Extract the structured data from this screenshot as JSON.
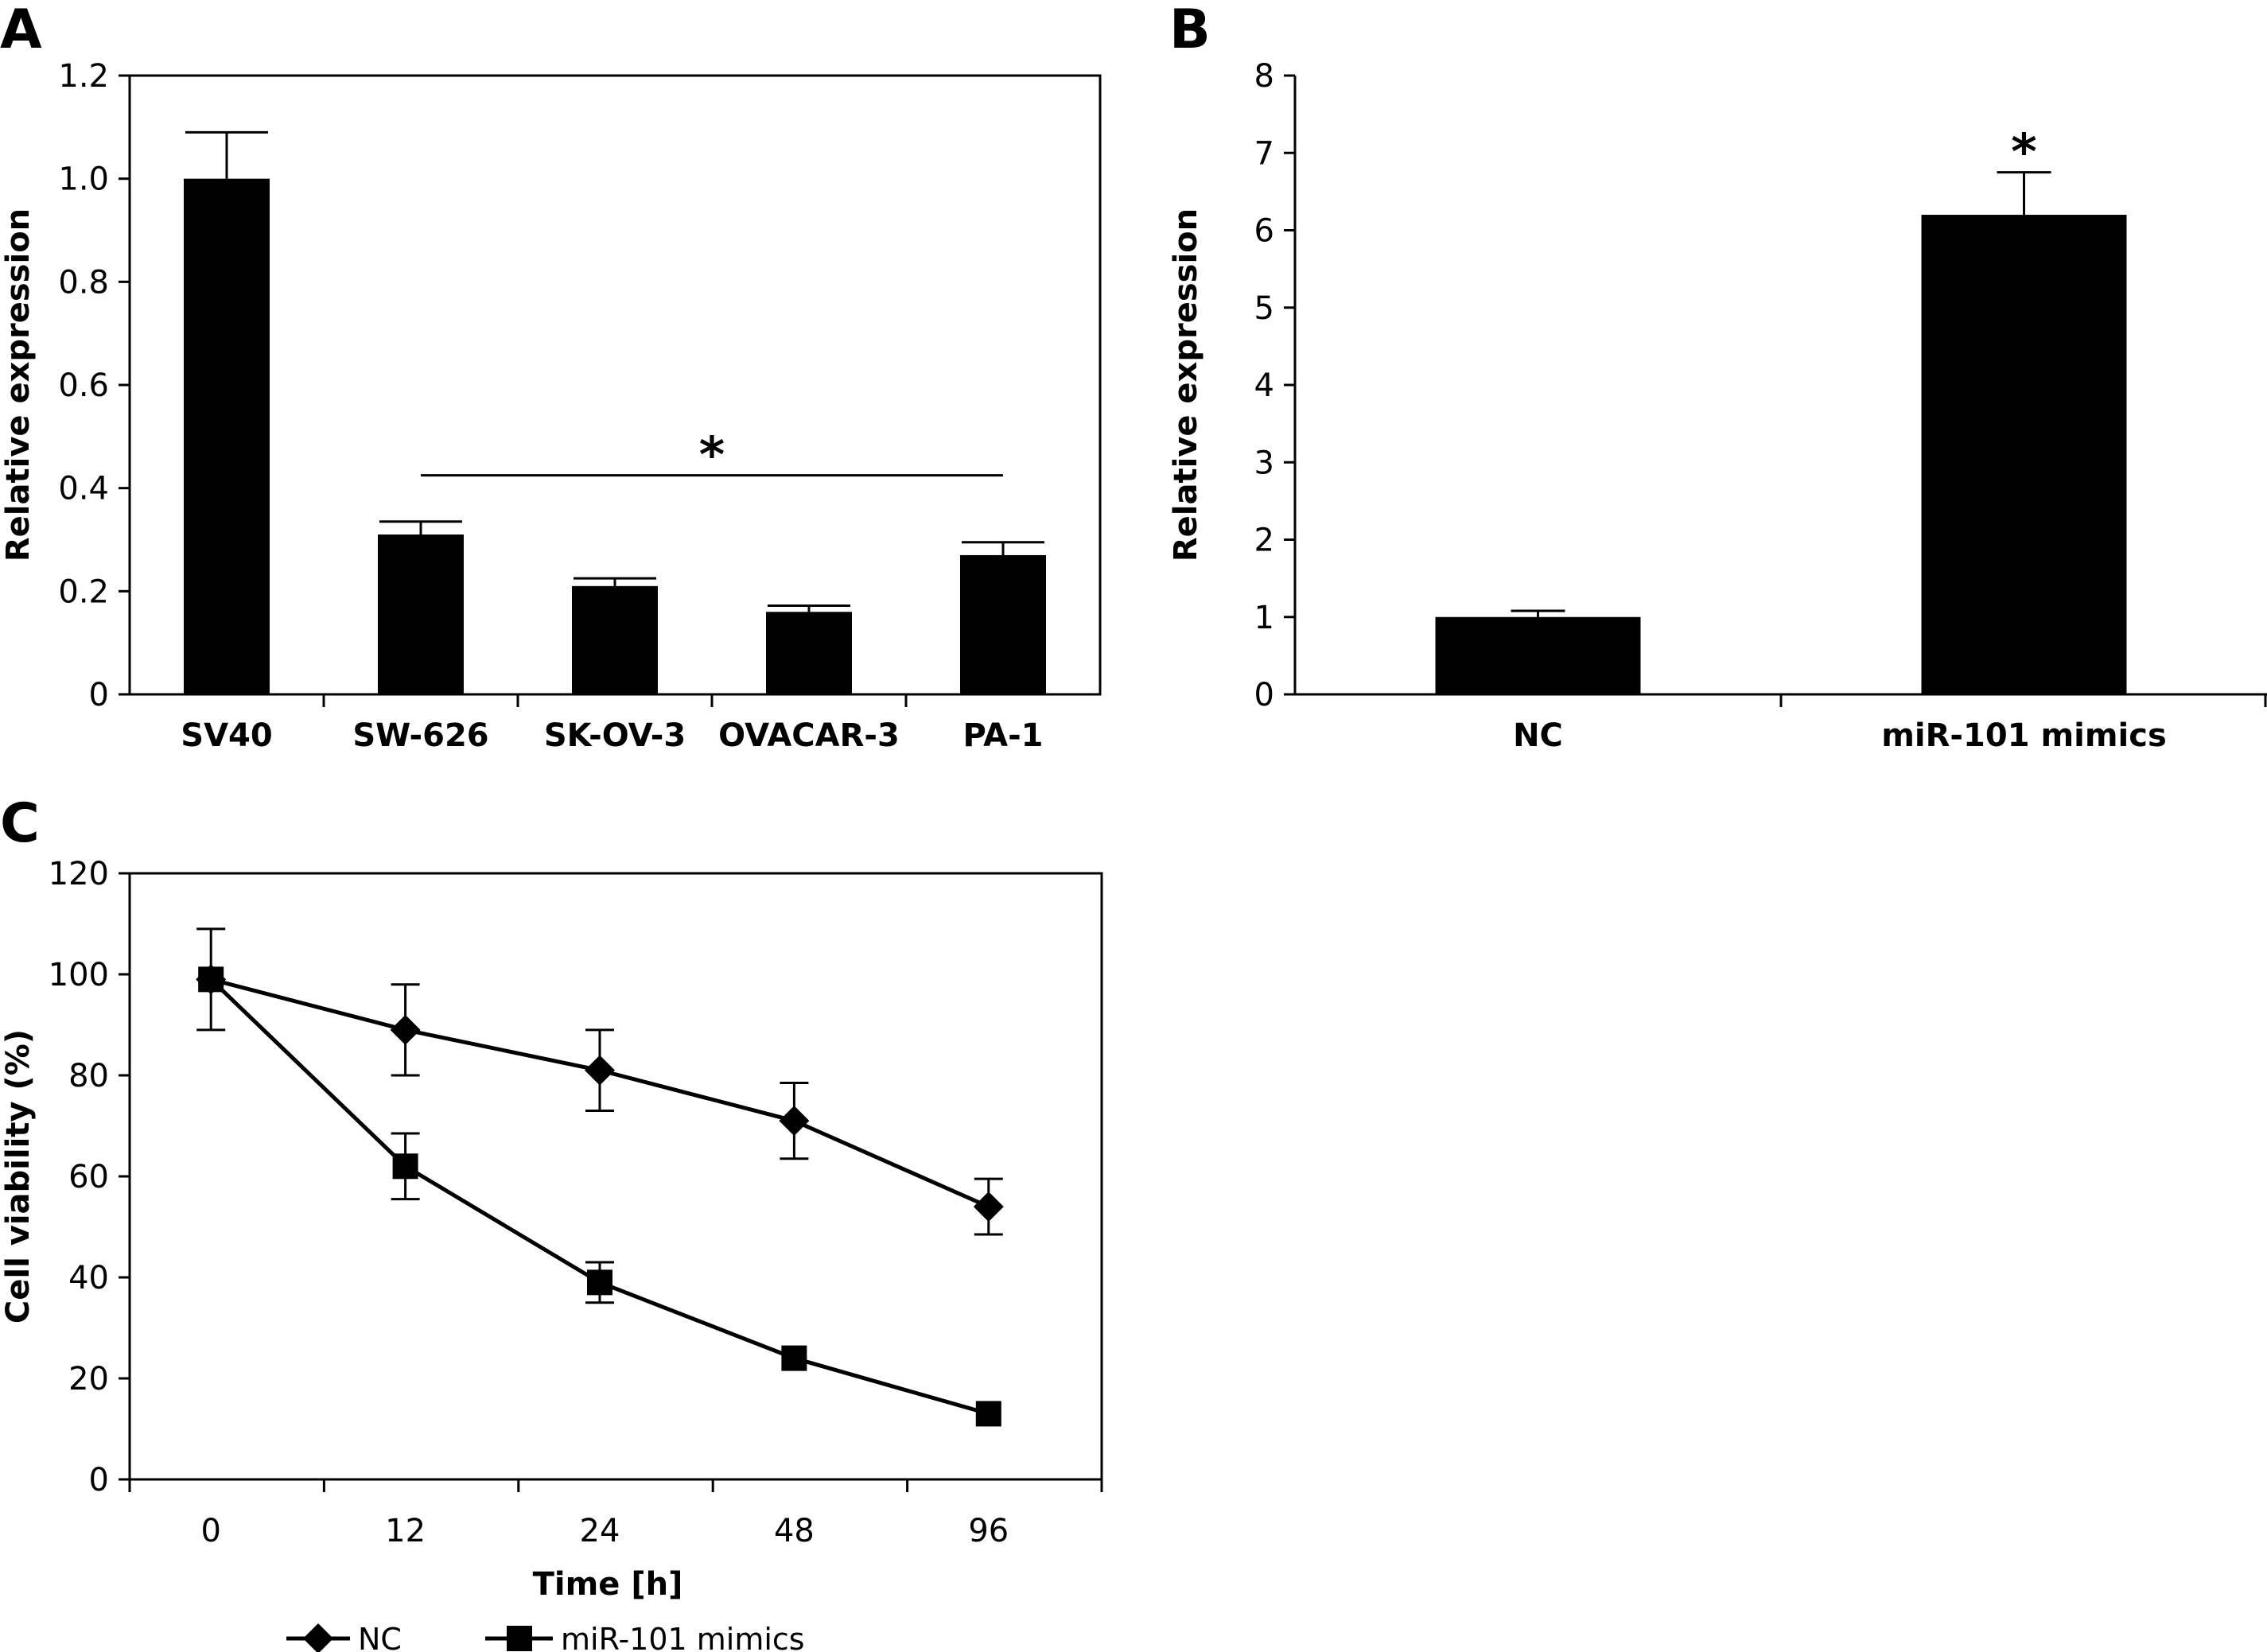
{
  "panels": {
    "A": "A",
    "B": "B",
    "C": "C"
  },
  "chart_data": [
    {
      "panel": "A",
      "type": "bar",
      "categories": [
        "SV40",
        "SW-626",
        "SK-OV-3",
        "OVACAR-3",
        "PA-1"
      ],
      "values": [
        1.0,
        0.31,
        0.21,
        0.16,
        0.27
      ],
      "errors": [
        0.09,
        0.025,
        0.015,
        0.012,
        0.025
      ],
      "ylabel": "Relative expression",
      "xlabel": "",
      "ylim": [
        0,
        1.2
      ],
      "yticks": [
        "0",
        "0.2",
        "0.4",
        "0.6",
        "0.8",
        "1.0",
        "1.2"
      ],
      "annotation": {
        "text": "*",
        "from": "SW-626",
        "to": "PA-1",
        "y": 0.4
      }
    },
    {
      "panel": "B",
      "type": "bar",
      "categories": [
        "NC",
        "miR-101 mimics"
      ],
      "values": [
        1.0,
        6.2
      ],
      "errors": [
        0.08,
        0.55
      ],
      "ylabel": "Relative expression",
      "xlabel": "",
      "ylim": [
        0,
        8
      ],
      "yticks": [
        "0",
        "1",
        "2",
        "3",
        "4",
        "5",
        "6",
        "7",
        "8"
      ],
      "annotation": {
        "text": "*",
        "on": "miR-101 mimics"
      }
    },
    {
      "panel": "C",
      "type": "line",
      "categories": [
        "0",
        "12",
        "24",
        "48",
        "96"
      ],
      "series": [
        {
          "name": "NC",
          "marker": "diamond",
          "values": [
            99,
            89,
            81,
            71,
            54
          ],
          "errors": [
            10,
            9,
            8,
            7.5,
            5.5
          ]
        },
        {
          "name": "miR-101 mimics",
          "marker": "square",
          "values": [
            99,
            62,
            39,
            24,
            13
          ],
          "errors": [
            0,
            6.5,
            4,
            0,
            0
          ]
        }
      ],
      "xlabel": "Time [h]",
      "ylabel": "Cell viability (%)",
      "ylim": [
        0,
        120
      ],
      "yticks": [
        "0",
        "20",
        "40",
        "60",
        "80",
        "100",
        "120"
      ],
      "legend": "bottom"
    }
  ]
}
